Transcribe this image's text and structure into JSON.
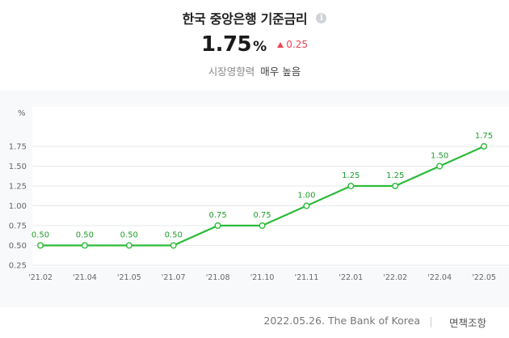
{
  "header": {
    "title": "한국 중앙은행 기준금리",
    "info_icon": "info-icon",
    "rate_value": "1.75",
    "rate_unit": "%",
    "change_value": "0.25",
    "change_direction_icon": "triangle-up-icon",
    "impact_label": "시장영향력",
    "impact_value": "매우 높음"
  },
  "colors": {
    "line": "#2cbb3a",
    "point_fill": "#ffffff",
    "label": "#1f9d2a",
    "up": "#f04452",
    "grid": "#e6e8ea"
  },
  "chart_data": {
    "type": "line",
    "ylabel": "%",
    "ylim": [
      0.25,
      1.75
    ],
    "yticks": [
      "0.25",
      "0.50",
      "0.75",
      "1.00",
      "1.25",
      "1.50",
      "1.75"
    ],
    "categories": [
      "'21.02",
      "'21.04",
      "'21.05",
      "'21.07",
      "'21.08",
      "'21.10",
      "'21.11",
      "'22.01",
      "'22.02",
      "'22.04",
      "'22.05"
    ],
    "series": [
      {
        "values": [
          0.5,
          0.5,
          0.5,
          0.5,
          0.75,
          0.75,
          1.0,
          1.25,
          1.25,
          1.5,
          1.75
        ],
        "labels": [
          "0.50",
          "0.50",
          "0.50",
          "0.50",
          "0.75",
          "0.75",
          "1.00",
          "1.25",
          "1.25",
          "1.50",
          "1.75"
        ]
      }
    ],
    "grid": true,
    "legend": "none"
  },
  "footer": {
    "source": "2022.05.26. The Bank of Korea",
    "disclaimer": "면책조항"
  }
}
